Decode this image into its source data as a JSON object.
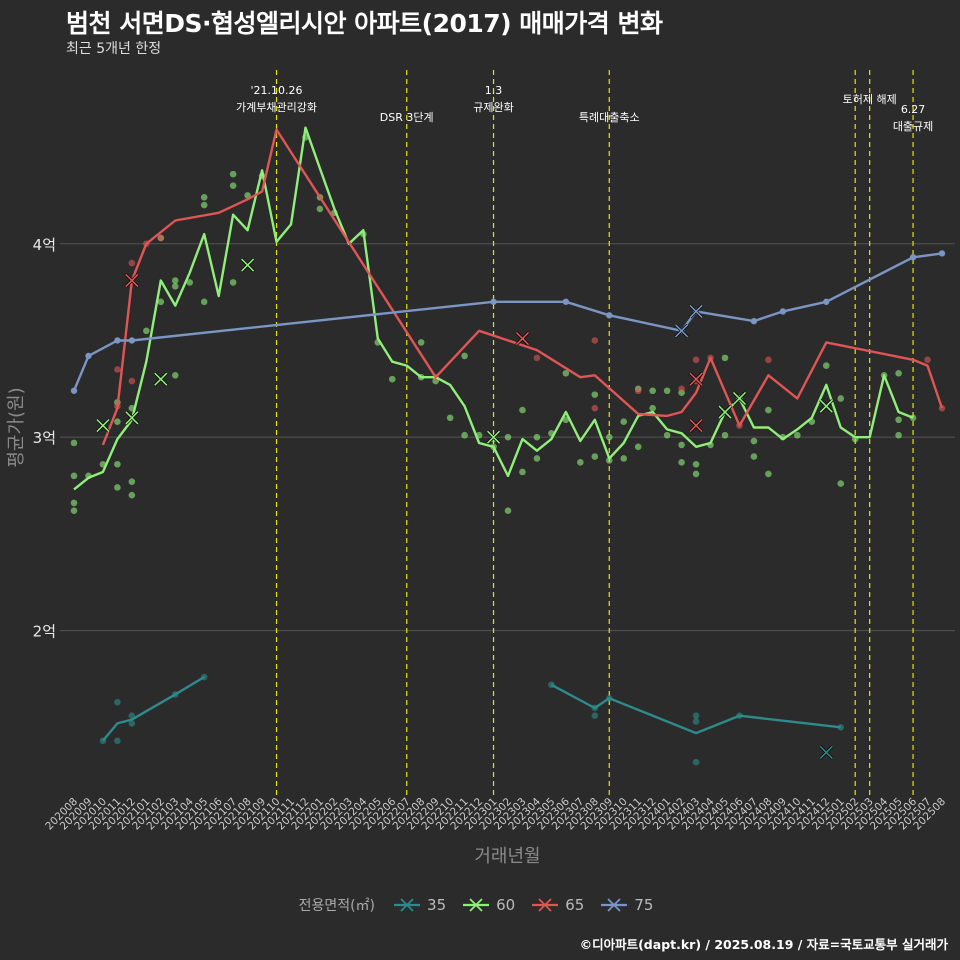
{
  "header": {
    "title": "범천 서면DS·협성엘리시안 아파트(2017) 매매가격 변화",
    "subtitle": "최근 5개년 한정",
    "caption": "©디아파트(dapt.kr) / 2025.08.19 / 자료=국토교통부 실거래가"
  },
  "chart_data": {
    "type": "line",
    "title": "범천 서면DS·협성엘리시안 아파트(2017) 매매가격 변화",
    "subtitle": "최근 5개년 한정",
    "xlabel": "거래년월",
    "ylabel": "평균가(원)",
    "ylim": [
      1.15,
      4.95
    ],
    "y_ticks": [
      {
        "value": 2,
        "label": "2억"
      },
      {
        "value": 3,
        "label": "3억"
      },
      {
        "value": 4,
        "label": "4억"
      }
    ],
    "grid": true,
    "legend_position": "bottom",
    "legend_title": "전용면적(㎡)",
    "categories": [
      "202008",
      "202009",
      "202010",
      "202011",
      "202012",
      "202101",
      "202102",
      "202103",
      "202104",
      "202105",
      "202106",
      "202107",
      "202108",
      "202109",
      "202110",
      "202111",
      "202112",
      "202201",
      "202202",
      "202203",
      "202204",
      "202205",
      "202206",
      "202207",
      "202208",
      "202209",
      "202210",
      "202211",
      "202212",
      "202301",
      "202302",
      "202303",
      "202304",
      "202305",
      "202306",
      "202307",
      "202308",
      "202309",
      "202310",
      "202311",
      "202312",
      "202401",
      "202402",
      "202403",
      "202404",
      "202405",
      "202406",
      "202407",
      "202408",
      "202409",
      "202410",
      "202411",
      "202412",
      "202501",
      "202502",
      "202503",
      "202504",
      "202505",
      "202506",
      "202507",
      "202508"
    ],
    "events": [
      {
        "date": "202110",
        "label": "'21.10.26\n가계부채관리강화"
      },
      {
        "date": "202207",
        "label": "DSR 3단계"
      },
      {
        "date": "202301",
        "label": "1.3\n규제완화"
      },
      {
        "date": "202309",
        "label": "특례대출축소"
      },
      {
        "date": "202502",
        "label": ""
      },
      {
        "date": "202503",
        "label": "토허제 해제"
      },
      {
        "date": "202506",
        "label": "6.27\n대출규제"
      }
    ],
    "series": [
      {
        "name": "35",
        "color": "#2e8b8b",
        "line": [
          [
            "202010",
            1.43
          ],
          [
            "202011",
            1.52
          ],
          [
            "202012",
            1.54
          ],
          [
            "202103",
            1.67
          ],
          [
            "202105",
            1.76
          ],
          null,
          [
            "202305",
            1.72
          ],
          [
            "202308",
            1.6
          ],
          [
            "202309",
            1.65
          ],
          [
            "202403",
            1.47
          ],
          [
            "202406",
            1.56
          ],
          [
            "202501",
            1.5
          ]
        ],
        "points": [
          [
            "202010",
            1.43
          ],
          [
            "202011",
            1.63
          ],
          [
            "202011",
            1.43
          ],
          [
            "202012",
            1.52
          ],
          [
            "202012",
            1.56
          ],
          [
            "202103",
            1.67
          ],
          [
            "202105",
            1.76
          ],
          [
            "202305",
            1.72
          ],
          [
            "202308",
            1.6
          ],
          [
            "202308",
            1.56
          ],
          [
            "202309",
            1.65
          ],
          [
            "202403",
            1.56
          ],
          [
            "202403",
            1.53
          ],
          [
            "202403",
            1.32
          ],
          [
            "202406",
            1.56
          ],
          [
            "202501",
            1.5
          ]
        ],
        "crosses": [
          [
            "202412",
            1.37
          ]
        ]
      },
      {
        "name": "60",
        "color": "#90ee7a",
        "line": [
          [
            "202008",
            2.73
          ],
          [
            "202009",
            2.79
          ],
          [
            "202010",
            2.82
          ],
          [
            "202011",
            2.99
          ],
          [
            "202012",
            3.09
          ],
          [
            "202101",
            3.39
          ],
          [
            "202102",
            3.81
          ],
          [
            "202103",
            3.68
          ],
          [
            "202104",
            3.85
          ],
          [
            "202105",
            4.05
          ],
          [
            "202106",
            3.73
          ],
          [
            "202107",
            4.15
          ],
          [
            "202108",
            4.07
          ],
          [
            "202109",
            4.38
          ],
          [
            "202110",
            4.01
          ],
          [
            "202111",
            4.1
          ],
          [
            "202112",
            4.6
          ],
          [
            "202201",
            4.39
          ],
          [
            "202202",
            4.18
          ],
          [
            "202203",
            4.0
          ],
          [
            "202204",
            4.07
          ],
          [
            "202205",
            3.51
          ],
          [
            "202206",
            3.39
          ],
          [
            "202207",
            3.37
          ],
          [
            "202208",
            3.31
          ],
          [
            "202209",
            3.31
          ],
          [
            "202210",
            3.27
          ],
          [
            "202211",
            3.16
          ],
          [
            "202212",
            2.97
          ],
          [
            "202301",
            2.95
          ],
          [
            "202302",
            2.8
          ],
          [
            "202303",
            2.99
          ],
          [
            "202304",
            2.93
          ],
          [
            "202305",
            2.99
          ],
          [
            "202306",
            3.13
          ],
          [
            "202307",
            2.98
          ],
          [
            "202308",
            3.09
          ],
          [
            "202309",
            2.89
          ],
          [
            "202310",
            2.97
          ],
          [
            "202311",
            3.11
          ],
          [
            "202312",
            3.13
          ],
          [
            "202401",
            3.04
          ],
          [
            "202402",
            3.02
          ],
          [
            "202403",
            2.95
          ],
          [
            "202404",
            2.97
          ],
          [
            "202405",
            3.13
          ],
          [
            "202406",
            3.2
          ],
          [
            "202407",
            3.05
          ],
          [
            "202408",
            3.05
          ],
          [
            "202409",
            2.99
          ],
          [
            "202410",
            3.04
          ],
          [
            "202411",
            3.1
          ],
          [
            "202412",
            3.27
          ],
          [
            "202501",
            3.05
          ],
          [
            "202502",
            3.0
          ],
          [
            "202503",
            3.0
          ],
          [
            "202504",
            3.32
          ],
          [
            "202505",
            3.13
          ],
          [
            "202506",
            3.1
          ]
        ],
        "points": [
          [
            "202008",
            2.97
          ],
          [
            "202008",
            2.8
          ],
          [
            "202008",
            2.66
          ],
          [
            "202008",
            2.62
          ],
          [
            "202009",
            2.8
          ],
          [
            "202010",
            2.86
          ],
          [
            "202011",
            3.18
          ],
          [
            "202011",
            3.08
          ],
          [
            "202011",
            2.86
          ],
          [
            "202011",
            2.74
          ],
          [
            "202012",
            3.15
          ],
          [
            "202012",
            2.77
          ],
          [
            "202012",
            2.7
          ],
          [
            "202101",
            3.55
          ],
          [
            "202102",
            4.03
          ],
          [
            "202102",
            3.7
          ],
          [
            "202103",
            3.81
          ],
          [
            "202103",
            3.78
          ],
          [
            "202103",
            3.32
          ],
          [
            "202104",
            3.8
          ],
          [
            "202105",
            4.24
          ],
          [
            "202105",
            4.2
          ],
          [
            "202105",
            3.7
          ],
          [
            "202107",
            4.36
          ],
          [
            "202107",
            4.3
          ],
          [
            "202107",
            3.8
          ],
          [
            "202108",
            4.25
          ],
          [
            "202109",
            4.35
          ],
          [
            "202112",
            4.55
          ],
          [
            "202201",
            4.24
          ],
          [
            "202201",
            4.18
          ],
          [
            "202202",
            4.16
          ],
          [
            "202204",
            4.05
          ],
          [
            "202205",
            3.49
          ],
          [
            "202206",
            3.3
          ],
          [
            "202208",
            3.49
          ],
          [
            "202208",
            3.31
          ],
          [
            "202209",
            3.29
          ],
          [
            "202210",
            3.1
          ],
          [
            "202211",
            3.42
          ],
          [
            "202211",
            3.01
          ],
          [
            "202212",
            3.01
          ],
          [
            "202301",
            2.99
          ],
          [
            "202301",
            2.95
          ],
          [
            "202302",
            3.0
          ],
          [
            "202302",
            2.62
          ],
          [
            "202303",
            3.14
          ],
          [
            "202303",
            2.82
          ],
          [
            "202304",
            3.0
          ],
          [
            "202304",
            2.89
          ],
          [
            "202305",
            3.02
          ],
          [
            "202306",
            3.33
          ],
          [
            "202306",
            3.09
          ],
          [
            "202307",
            2.87
          ],
          [
            "202308",
            3.22
          ],
          [
            "202308",
            2.9
          ],
          [
            "202309",
            2.88
          ],
          [
            "202309",
            3.0
          ],
          [
            "202310",
            3.08
          ],
          [
            "202310",
            2.89
          ],
          [
            "202311",
            3.25
          ],
          [
            "202311",
            2.95
          ],
          [
            "202312",
            3.24
          ],
          [
            "202312",
            3.15
          ],
          [
            "202401",
            3.24
          ],
          [
            "202401",
            3.01
          ],
          [
            "202402",
            3.23
          ],
          [
            "202402",
            2.96
          ],
          [
            "202402",
            2.87
          ],
          [
            "202403",
            2.86
          ],
          [
            "202403",
            2.81
          ],
          [
            "202404",
            2.96
          ],
          [
            "202405",
            3.41
          ],
          [
            "202405",
            3.01
          ],
          [
            "202406",
            3.2
          ],
          [
            "202407",
            2.98
          ],
          [
            "202407",
            2.9
          ],
          [
            "202408",
            3.14
          ],
          [
            "202408",
            2.81
          ],
          [
            "202409",
            3.0
          ],
          [
            "202410",
            3.01
          ],
          [
            "202411",
            3.08
          ],
          [
            "202412",
            3.37
          ],
          [
            "202501",
            3.2
          ],
          [
            "202501",
            2.76
          ],
          [
            "202502",
            2.99
          ],
          [
            "202504",
            3.32
          ],
          [
            "202505",
            3.01
          ],
          [
            "202505",
            3.09
          ],
          [
            "202505",
            3.33
          ],
          [
            "202506",
            3.1
          ]
        ],
        "crosses": [
          [
            "202010",
            3.06
          ],
          [
            "202012",
            3.1
          ],
          [
            "202102",
            3.3
          ],
          [
            "202108",
            3.89
          ],
          [
            "202301",
            3.0
          ],
          [
            "202405",
            3.13
          ],
          [
            "202406",
            3.2
          ],
          [
            "202412",
            3.16
          ]
        ]
      },
      {
        "name": "65",
        "color": "#e05555",
        "line": [
          [
            "202010",
            2.96
          ],
          [
            "202011",
            3.15
          ],
          [
            "202012",
            3.81
          ],
          [
            "202101",
            4.0
          ],
          [
            "202103",
            4.12
          ],
          [
            "202106",
            4.16
          ],
          [
            "202108",
            4.23
          ],
          [
            "202109",
            4.27
          ],
          [
            "202110",
            4.59
          ],
          [
            "202209",
            3.31
          ],
          [
            "202212",
            3.55
          ],
          [
            "202304",
            3.45
          ],
          [
            "202307",
            3.31
          ],
          [
            "202308",
            3.32
          ],
          [
            "202311",
            3.12
          ],
          [
            "202401",
            3.11
          ],
          [
            "202402",
            3.13
          ],
          [
            "202403",
            3.23
          ],
          [
            "202404",
            3.41
          ],
          [
            "202406",
            3.06
          ],
          [
            "202408",
            3.32
          ],
          [
            "202410",
            3.2
          ],
          [
            "202412",
            3.49
          ],
          [
            "202506",
            3.4
          ],
          [
            "202507",
            3.37
          ],
          [
            "202508",
            3.15
          ]
        ],
        "points": [
          [
            "202011",
            3.35
          ],
          [
            "202011",
            3.16
          ],
          [
            "202012",
            3.9
          ],
          [
            "202012",
            3.29
          ],
          [
            "202101",
            4.0
          ],
          [
            "202102",
            4.03
          ],
          [
            "202209",
            3.31
          ],
          [
            "202304",
            3.41
          ],
          [
            "202308",
            3.5
          ],
          [
            "202308",
            3.15
          ],
          [
            "202311",
            3.24
          ],
          [
            "202402",
            3.25
          ],
          [
            "202403",
            3.4
          ],
          [
            "202403",
            3.29
          ],
          [
            "202404",
            3.41
          ],
          [
            "202406",
            3.06
          ],
          [
            "202408",
            3.4
          ],
          [
            "202507",
            3.4
          ],
          [
            "202508",
            3.15
          ]
        ],
        "crosses": [
          [
            "202012",
            3.81
          ],
          [
            "202303",
            3.51
          ],
          [
            "202403",
            3.06
          ],
          [
            "202403",
            3.3
          ]
        ]
      },
      {
        "name": "75",
        "color": "#7b96c4",
        "line": [
          [
            "202008",
            3.24
          ],
          [
            "202009",
            3.42
          ],
          [
            "202011",
            3.5
          ],
          [
            "202012",
            3.5
          ],
          [
            "202301",
            3.7
          ],
          [
            "202306",
            3.7
          ],
          [
            "202309",
            3.63
          ],
          [
            "202402",
            3.55
          ],
          [
            "202403",
            3.65
          ],
          [
            "202407",
            3.6
          ],
          [
            "202409",
            3.65
          ],
          [
            "202412",
            3.7
          ],
          [
            "202506",
            3.93
          ],
          [
            "202508",
            3.95
          ]
        ],
        "points": [
          [
            "202008",
            3.24
          ],
          [
            "202009",
            3.42
          ],
          [
            "202011",
            3.5
          ],
          [
            "202012",
            3.5
          ],
          [
            "202301",
            3.7
          ],
          [
            "202306",
            3.7
          ],
          [
            "202309",
            3.63
          ],
          [
            "202407",
            3.6
          ],
          [
            "202409",
            3.65
          ],
          [
            "202412",
            3.7
          ],
          [
            "202506",
            3.93
          ],
          [
            "202508",
            3.95
          ]
        ],
        "crosses": [
          [
            "202402",
            3.55
          ],
          [
            "202403",
            3.65
          ]
        ]
      }
    ]
  }
}
